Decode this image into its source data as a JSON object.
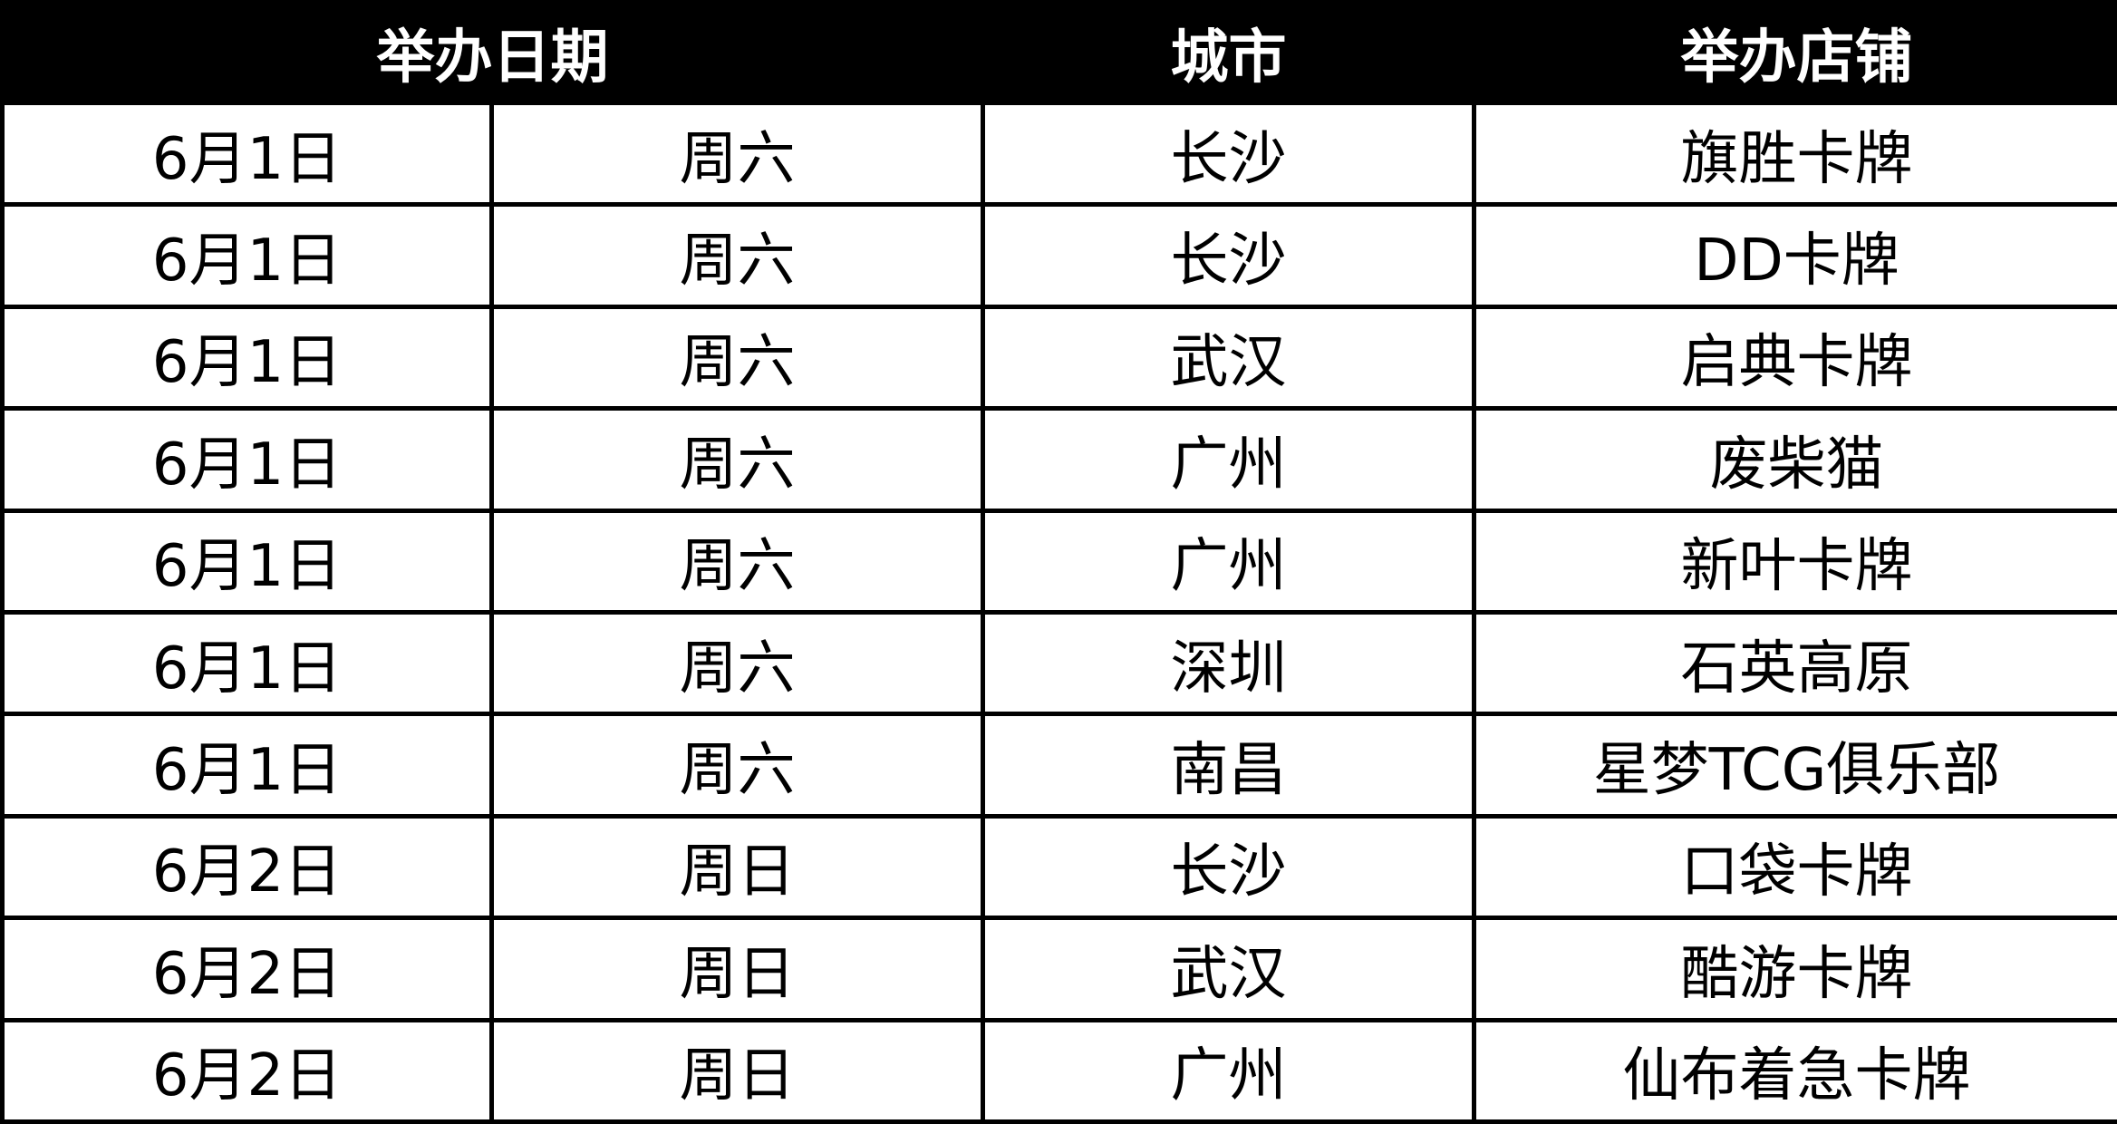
{
  "table": {
    "header": [
      "举办日期",
      "城市",
      "举办店铺"
    ],
    "rows": [
      [
        "6月1日",
        "周六",
        "长沙",
        "旗胜卡牌"
      ],
      [
        "6月1日",
        "周六",
        "长沙",
        "DD卡牌"
      ],
      [
        "6月1日",
        "周六",
        "武汉",
        "启典卡牌"
      ],
      [
        "6月1日",
        "周六",
        "广州",
        "废柴猫"
      ],
      [
        "6月1日",
        "周六",
        "广州",
        "新叶卡牌"
      ],
      [
        "6月1日",
        "周六",
        "深圳",
        "石英高原"
      ],
      [
        "6月1日",
        "周六",
        "南昌",
        "星梦TCG俱乐部"
      ],
      [
        "6月2日",
        "周日",
        "长沙",
        "口袋卡牌"
      ],
      [
        "6月2日",
        "周日",
        "武汉",
        "酷游卡牌"
      ],
      [
        "6月2日",
        "周日",
        "广州",
        "仙布着急卡牌"
      ]
    ]
  }
}
